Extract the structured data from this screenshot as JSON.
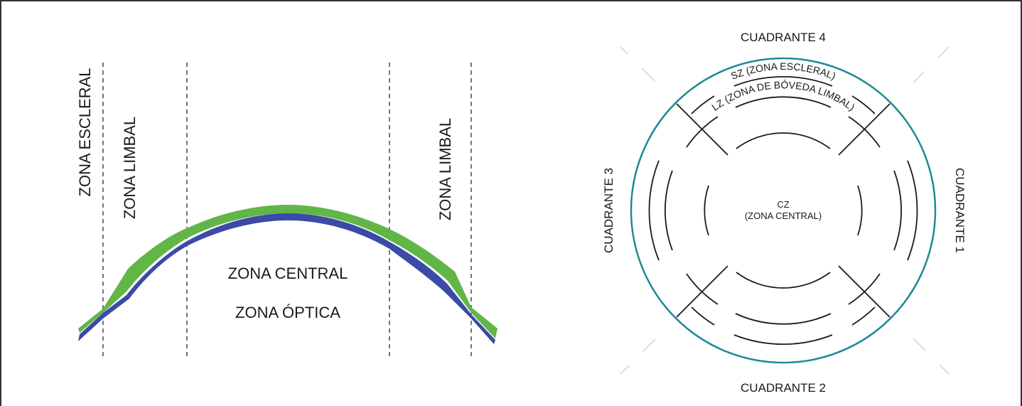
{
  "colors": {
    "border": "#333333",
    "lens_green": "#62b547",
    "lens_blue": "#3b4aa6",
    "outer_circle": "#1d8a96",
    "line": "#1a1a1a",
    "guide": "#c8c8c8"
  },
  "profile": {
    "zona_escleral": "ZONA ESCLERAL",
    "zona_limbal_left": "ZONA LIMBAL",
    "zona_limbal_right": "ZONA LIMBAL",
    "zona_central": "ZONA CENTRAL",
    "zona_optica": "ZONA ÓPTICA"
  },
  "topview": {
    "cuadrante_4": "CUADRANTE 4",
    "cuadrante_2": "CUADRANTE 2",
    "cuadrante_3": "CUADRANTE 3",
    "cuadrante_1": "CUADRANTE 1",
    "sz_label": "SZ (ZONA ESCLERAL)",
    "lz_label": "LZ (ZONA DE BÓVEDA LIMBAL)",
    "cz_label": "CZ",
    "cz_sub": "(ZONA CENTRAL)"
  }
}
